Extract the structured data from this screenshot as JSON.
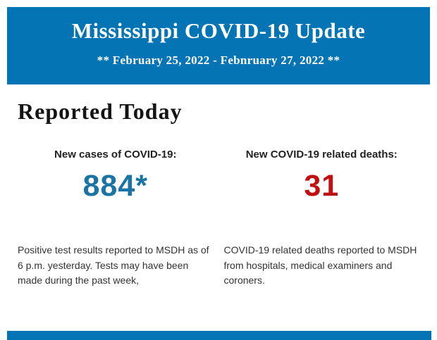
{
  "colors": {
    "header_bg": "#0474b4",
    "header_text": "#ffffff",
    "heading_text": "#141414",
    "label_text": "#222222",
    "cases_value": "#1a75a5",
    "deaths_value": "#c01112",
    "body_text": "#333333"
  },
  "header": {
    "title": "Mississippi COVID-19 Update",
    "date_range": "** February 25, 2022 - Febnruary 27, 2022 **"
  },
  "main": {
    "heading": "Reported Today",
    "stats": [
      {
        "label": "New cases of COVID-19:",
        "value": "884*",
        "value_color": "#1a75a5",
        "description": "Positive test results reported to MSDH as of 6 p.m. yesterday. Tests may have been made during the past week,"
      },
      {
        "label": "New COVID-19 related deaths:",
        "value": "31",
        "value_color": "#c01112",
        "description": "COVID-19 related deaths reported to MSDH from hospitals, medical examiners and coroners."
      }
    ]
  }
}
